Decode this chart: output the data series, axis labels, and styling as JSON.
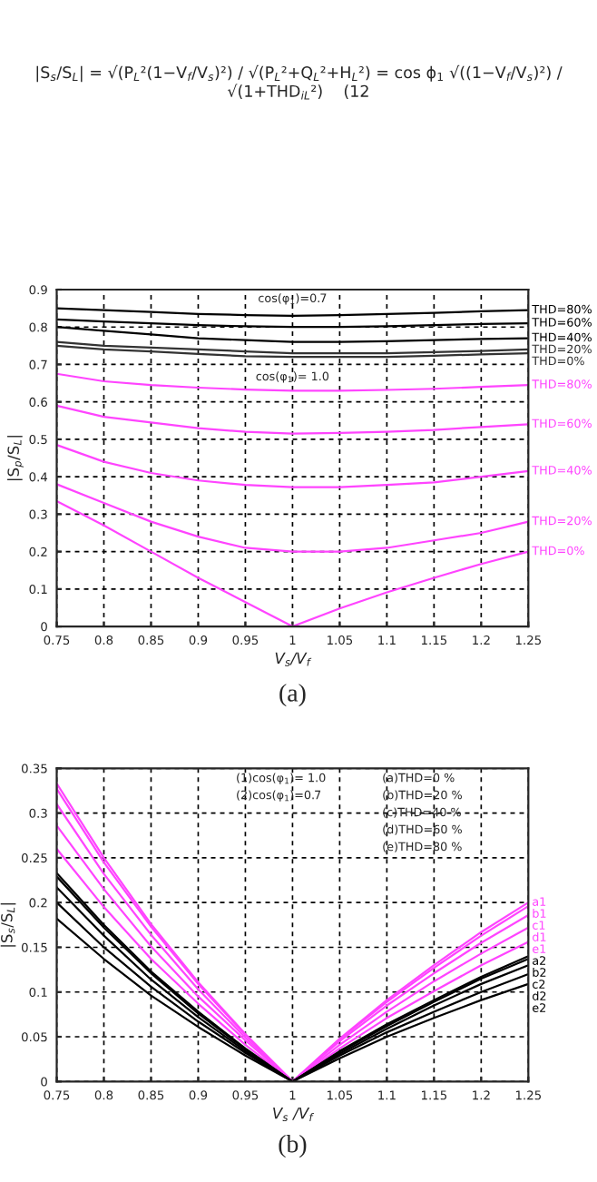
{
  "chart_data": [
    {
      "type": "other",
      "annotations": [
        "|S$_{s}$/S$_{L}$| = √(P$_{L}$²(1−V$_{f}$/V$_{s}$)²) / √(P$_{L}$²+Q$_{L}$²+H$_{L}$²) = cos ϕ$_{1}$ √((1−V$_{f}$/V$_{s}$)²) / √(1+THD$_{iL}$²)    (12"
      ]
    },
    {
      "type": "line",
      "title": "(a)",
      "xlabel": "V$_{s}$/V$_{f}$",
      "ylabel": "|S$_{p}$/S$_{L}$|",
      "x": [
        0.75,
        0.8,
        0.85,
        0.9,
        0.95,
        1.0,
        1.05,
        1.1,
        1.15,
        1.2,
        1.25
      ],
      "series": [
        {
          "name": "THD=80%",
          "color": "#000000",
          "values": [
            0.85,
            0.845,
            0.84,
            0.835,
            0.832,
            0.83,
            0.832,
            0.835,
            0.838,
            0.842,
            0.845
          ]
        },
        {
          "name": "THD=60%",
          "color": "#000000",
          "values": [
            0.82,
            0.815,
            0.81,
            0.805,
            0.802,
            0.8,
            0.8,
            0.802,
            0.805,
            0.808,
            0.81
          ]
        },
        {
          "name": "THD=40%",
          "color": "#000000",
          "values": [
            0.8,
            0.79,
            0.78,
            0.77,
            0.765,
            0.76,
            0.76,
            0.762,
            0.765,
            0.768,
            0.77
          ]
        },
        {
          "name": "THD=20%",
          "color": "#333333",
          "values": [
            0.76,
            0.75,
            0.745,
            0.74,
            0.735,
            0.73,
            0.73,
            0.73,
            0.733,
            0.736,
            0.74
          ]
        },
        {
          "name": "THD=0%",
          "color": "#333333",
          "values": [
            0.75,
            0.74,
            0.735,
            0.728,
            0.722,
            0.72,
            0.72,
            0.72,
            0.723,
            0.727,
            0.73
          ]
        },
        {
          "name": "THD=80%",
          "color": "#ff44ff",
          "values": [
            0.675,
            0.655,
            0.645,
            0.638,
            0.633,
            0.63,
            0.63,
            0.632,
            0.635,
            0.64,
            0.645
          ]
        },
        {
          "name": "THD=60%",
          "color": "#ff44ff",
          "values": [
            0.59,
            0.56,
            0.545,
            0.53,
            0.52,
            0.515,
            0.517,
            0.52,
            0.525,
            0.533,
            0.54
          ]
        },
        {
          "name": "THD=40%",
          "color": "#ff44ff",
          "values": [
            0.485,
            0.44,
            0.41,
            0.39,
            0.378,
            0.372,
            0.372,
            0.378,
            0.385,
            0.4,
            0.415
          ]
        },
        {
          "name": "THD=20%",
          "color": "#ff44ff",
          "values": [
            0.38,
            0.33,
            0.28,
            0.24,
            0.21,
            0.2,
            0.2,
            0.21,
            0.23,
            0.25,
            0.28
          ]
        },
        {
          "name": "THD=0%",
          "color": "#ff44ff",
          "values": [
            0.335,
            0.27,
            0.2,
            0.13,
            0.065,
            0.0,
            0.048,
            0.091,
            0.13,
            0.167,
            0.2
          ]
        }
      ],
      "xlim": [
        0.75,
        1.25
      ],
      "xticks": [
        0.75,
        0.8,
        0.85,
        0.9,
        0.95,
        1,
        1.05,
        1.1,
        1.15,
        1.2,
        1.25
      ],
      "ylim": [
        0,
        0.9
      ],
      "yticks": [
        0,
        0.1,
        0.2,
        0.3,
        0.4,
        0.5,
        0.6,
        0.7,
        0.8,
        0.9
      ],
      "grid": true,
      "legend": false,
      "marker": "none",
      "line_style": "solid",
      "annotations": [
        "cos(φ$_{1}$)=0.7",
        "cos(φ$_{1}$)= 1.0"
      ]
    },
    {
      "type": "line",
      "title": "(b)",
      "xlabel": "V$_{s}$ /V$_{f}$",
      "ylabel": "|S$_{s}$/S$_{L}$|",
      "x": [
        0.75,
        0.8,
        0.85,
        0.9,
        0.95,
        1.0,
        1.05,
        1.1,
        1.15,
        1.2,
        1.25
      ],
      "series": [
        {
          "name": "a1",
          "color": "#ff44ff",
          "values": [
            0.333,
            0.25,
            0.176,
            0.111,
            0.053,
            0,
            0.048,
            0.091,
            0.13,
            0.167,
            0.2
          ]
        },
        {
          "name": "b1",
          "color": "#ff44ff",
          "values": [
            0.327,
            0.245,
            0.173,
            0.109,
            0.052,
            0,
            0.047,
            0.089,
            0.127,
            0.163,
            0.196
          ]
        },
        {
          "name": "c1",
          "color": "#ff44ff",
          "values": [
            0.31,
            0.232,
            0.164,
            0.103,
            0.049,
            0,
            0.045,
            0.085,
            0.121,
            0.155,
            0.186
          ]
        },
        {
          "name": "d1",
          "color": "#ff44ff",
          "values": [
            0.286,
            0.215,
            0.151,
            0.095,
            0.046,
            0,
            0.041,
            0.078,
            0.112,
            0.143,
            0.172
          ]
        },
        {
          "name": "e1",
          "color": "#ff44ff",
          "values": [
            0.26,
            0.195,
            0.137,
            0.087,
            0.041,
            0,
            0.037,
            0.071,
            0.101,
            0.13,
            0.156
          ]
        },
        {
          "name": "a2",
          "color": "#000000",
          "values": [
            0.233,
            0.175,
            0.123,
            0.078,
            0.037,
            0,
            0.034,
            0.064,
            0.091,
            0.117,
            0.14
          ]
        },
        {
          "name": "b2",
          "color": "#000000",
          "values": [
            0.229,
            0.172,
            0.121,
            0.076,
            0.036,
            0,
            0.033,
            0.062,
            0.089,
            0.115,
            0.137
          ]
        },
        {
          "name": "c2",
          "color": "#000000",
          "values": [
            0.217,
            0.163,
            0.114,
            0.072,
            0.034,
            0,
            0.031,
            0.059,
            0.085,
            0.109,
            0.13
          ]
        },
        {
          "name": "d2",
          "color": "#000000",
          "values": [
            0.2,
            0.15,
            0.106,
            0.067,
            0.032,
            0,
            0.029,
            0.055,
            0.078,
            0.1,
            0.12
          ]
        },
        {
          "name": "e2",
          "color": "#000000",
          "values": [
            0.182,
            0.137,
            0.096,
            0.061,
            0.029,
            0,
            0.026,
            0.05,
            0.071,
            0.091,
            0.109
          ]
        }
      ],
      "xlim": [
        0.75,
        1.25
      ],
      "xticks": [
        0.75,
        0.8,
        0.85,
        0.9,
        0.95,
        1,
        1.05,
        1.1,
        1.15,
        1.2,
        1.25
      ],
      "ylim": [
        0,
        0.35
      ],
      "yticks": [
        0,
        0.05,
        0.1,
        0.15,
        0.2,
        0.25,
        0.3,
        0.35
      ],
      "grid": true,
      "legend": false,
      "marker": "none",
      "line_style": "solid",
      "annotations": [
        "(1)cos(φ$_{1}$)= 1.0",
        "(2)cos(φ$_{1}$)=0.7",
        "(a)THD=0 %",
        "(b)THD=20 %",
        "(c)THD=40 %",
        "(d)THD=60 %",
        "(e)THD=80 %"
      ]
    }
  ]
}
